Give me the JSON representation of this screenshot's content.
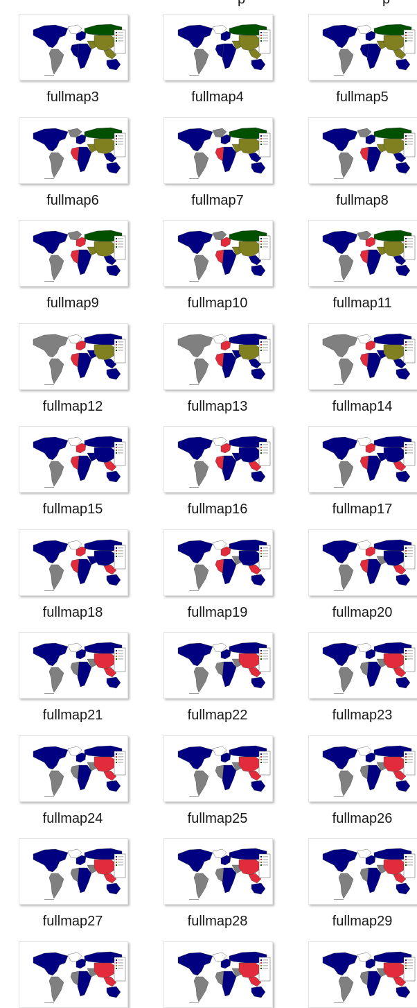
{
  "colors": {
    "ocean": "#ffffff",
    "blue": "#000080",
    "gray": "#808080",
    "green": "#005000",
    "olive": "#808020",
    "red": "#e22c3c",
    "white": "#ffffff",
    "outline": "#444444"
  },
  "files": [
    {
      "name": "fullmap3",
      "scheme": "a"
    },
    {
      "name": "fullmap4",
      "scheme": "a"
    },
    {
      "name": "fullmap5",
      "scheme": "a"
    },
    {
      "name": "fullmap6",
      "scheme": "b"
    },
    {
      "name": "fullmap7",
      "scheme": "b"
    },
    {
      "name": "fullmap8",
      "scheme": "b"
    },
    {
      "name": "fullmap9",
      "scheme": "c"
    },
    {
      "name": "fullmap10",
      "scheme": "c"
    },
    {
      "name": "fullmap11",
      "scheme": "c"
    },
    {
      "name": "fullmap12",
      "scheme": "d"
    },
    {
      "name": "fullmap13",
      "scheme": "d"
    },
    {
      "name": "fullmap14",
      "scheme": "d"
    },
    {
      "name": "fullmap15",
      "scheme": "e"
    },
    {
      "name": "fullmap16",
      "scheme": "e"
    },
    {
      "name": "fullmap17",
      "scheme": "e"
    },
    {
      "name": "fullmap18",
      "scheme": "e"
    },
    {
      "name": "fullmap19",
      "scheme": "f"
    },
    {
      "name": "fullmap20",
      "scheme": "f"
    },
    {
      "name": "fullmap21",
      "scheme": "g"
    },
    {
      "name": "fullmap22",
      "scheme": "g"
    },
    {
      "name": "fullmap23",
      "scheme": "g"
    },
    {
      "name": "fullmap24",
      "scheme": "g"
    },
    {
      "name": "fullmap25",
      "scheme": "g"
    },
    {
      "name": "fullmap26",
      "scheme": "g"
    },
    {
      "name": "fullmap27",
      "scheme": "g"
    },
    {
      "name": "fullmap28",
      "scheme": "g"
    },
    {
      "name": "fullmap29",
      "scheme": "g"
    },
    {
      "name": "",
      "scheme": "g"
    },
    {
      "name": "",
      "scheme": "g"
    },
    {
      "name": "",
      "scheme": "g"
    }
  ],
  "top_partial_labels": [
    "p",
    "p"
  ]
}
